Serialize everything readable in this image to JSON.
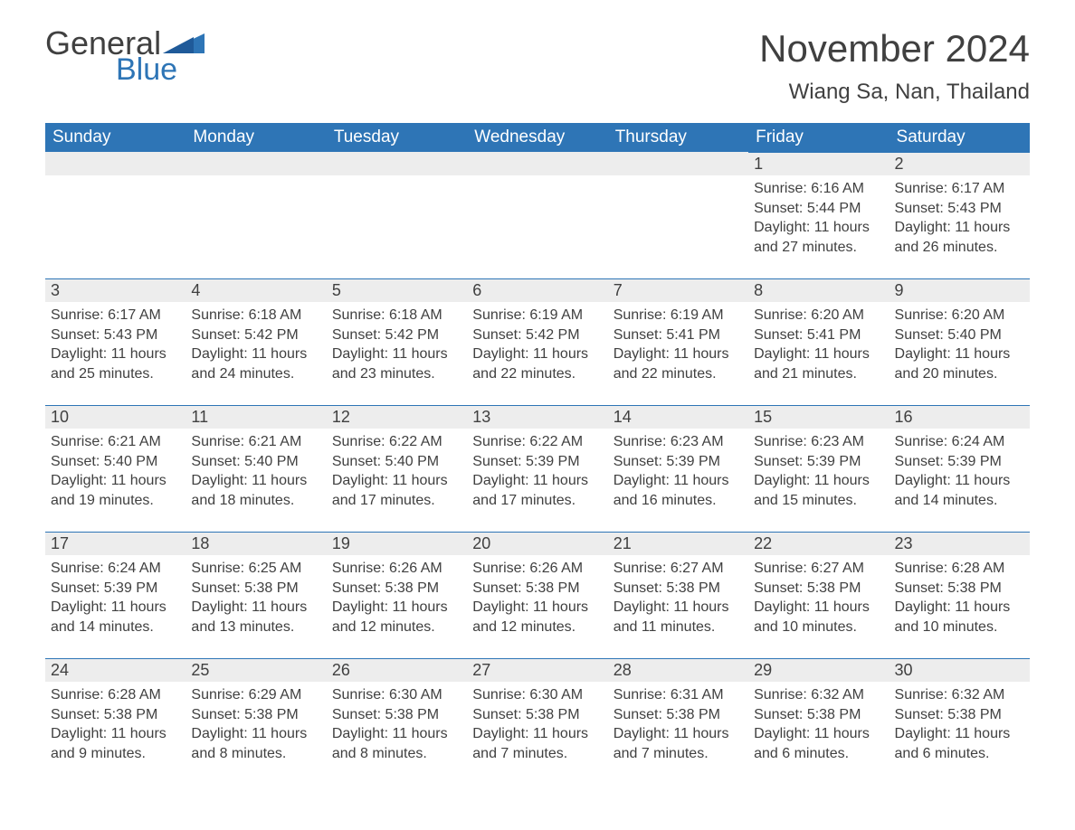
{
  "logo": {
    "text1": "General",
    "text2": "Blue",
    "color_general": "#404040",
    "color_blue": "#2e75b6"
  },
  "title": "November 2024",
  "location": "Wiang Sa, Nan, Thailand",
  "colors": {
    "header_bg": "#2e75b6",
    "header_text": "#ffffff",
    "daynum_bg": "#ededed",
    "day_border_top": "#2e75b6",
    "body_text": "#404040",
    "page_bg": "#ffffff"
  },
  "fonts": {
    "title_size": 42,
    "location_size": 24,
    "weekday_size": 19,
    "daynum_size": 18,
    "body_size": 16
  },
  "weekdays": [
    "Sunday",
    "Monday",
    "Tuesday",
    "Wednesday",
    "Thursday",
    "Friday",
    "Saturday"
  ],
  "weeks": [
    [
      null,
      null,
      null,
      null,
      null,
      {
        "n": "1",
        "sunrise": "Sunrise: 6:16 AM",
        "sunset": "Sunset: 5:44 PM",
        "daylight": "Daylight: 11 hours and 27 minutes."
      },
      {
        "n": "2",
        "sunrise": "Sunrise: 6:17 AM",
        "sunset": "Sunset: 5:43 PM",
        "daylight": "Daylight: 11 hours and 26 minutes."
      }
    ],
    [
      {
        "n": "3",
        "sunrise": "Sunrise: 6:17 AM",
        "sunset": "Sunset: 5:43 PM",
        "daylight": "Daylight: 11 hours and 25 minutes."
      },
      {
        "n": "4",
        "sunrise": "Sunrise: 6:18 AM",
        "sunset": "Sunset: 5:42 PM",
        "daylight": "Daylight: 11 hours and 24 minutes."
      },
      {
        "n": "5",
        "sunrise": "Sunrise: 6:18 AM",
        "sunset": "Sunset: 5:42 PM",
        "daylight": "Daylight: 11 hours and 23 minutes."
      },
      {
        "n": "6",
        "sunrise": "Sunrise: 6:19 AM",
        "sunset": "Sunset: 5:42 PM",
        "daylight": "Daylight: 11 hours and 22 minutes."
      },
      {
        "n": "7",
        "sunrise": "Sunrise: 6:19 AM",
        "sunset": "Sunset: 5:41 PM",
        "daylight": "Daylight: 11 hours and 22 minutes."
      },
      {
        "n": "8",
        "sunrise": "Sunrise: 6:20 AM",
        "sunset": "Sunset: 5:41 PM",
        "daylight": "Daylight: 11 hours and 21 minutes."
      },
      {
        "n": "9",
        "sunrise": "Sunrise: 6:20 AM",
        "sunset": "Sunset: 5:40 PM",
        "daylight": "Daylight: 11 hours and 20 minutes."
      }
    ],
    [
      {
        "n": "10",
        "sunrise": "Sunrise: 6:21 AM",
        "sunset": "Sunset: 5:40 PM",
        "daylight": "Daylight: 11 hours and 19 minutes."
      },
      {
        "n": "11",
        "sunrise": "Sunrise: 6:21 AM",
        "sunset": "Sunset: 5:40 PM",
        "daylight": "Daylight: 11 hours and 18 minutes."
      },
      {
        "n": "12",
        "sunrise": "Sunrise: 6:22 AM",
        "sunset": "Sunset: 5:40 PM",
        "daylight": "Daylight: 11 hours and 17 minutes."
      },
      {
        "n": "13",
        "sunrise": "Sunrise: 6:22 AM",
        "sunset": "Sunset: 5:39 PM",
        "daylight": "Daylight: 11 hours and 17 minutes."
      },
      {
        "n": "14",
        "sunrise": "Sunrise: 6:23 AM",
        "sunset": "Sunset: 5:39 PM",
        "daylight": "Daylight: 11 hours and 16 minutes."
      },
      {
        "n": "15",
        "sunrise": "Sunrise: 6:23 AM",
        "sunset": "Sunset: 5:39 PM",
        "daylight": "Daylight: 11 hours and 15 minutes."
      },
      {
        "n": "16",
        "sunrise": "Sunrise: 6:24 AM",
        "sunset": "Sunset: 5:39 PM",
        "daylight": "Daylight: 11 hours and 14 minutes."
      }
    ],
    [
      {
        "n": "17",
        "sunrise": "Sunrise: 6:24 AM",
        "sunset": "Sunset: 5:39 PM",
        "daylight": "Daylight: 11 hours and 14 minutes."
      },
      {
        "n": "18",
        "sunrise": "Sunrise: 6:25 AM",
        "sunset": "Sunset: 5:38 PM",
        "daylight": "Daylight: 11 hours and 13 minutes."
      },
      {
        "n": "19",
        "sunrise": "Sunrise: 6:26 AM",
        "sunset": "Sunset: 5:38 PM",
        "daylight": "Daylight: 11 hours and 12 minutes."
      },
      {
        "n": "20",
        "sunrise": "Sunrise: 6:26 AM",
        "sunset": "Sunset: 5:38 PM",
        "daylight": "Daylight: 11 hours and 12 minutes."
      },
      {
        "n": "21",
        "sunrise": "Sunrise: 6:27 AM",
        "sunset": "Sunset: 5:38 PM",
        "daylight": "Daylight: 11 hours and 11 minutes."
      },
      {
        "n": "22",
        "sunrise": "Sunrise: 6:27 AM",
        "sunset": "Sunset: 5:38 PM",
        "daylight": "Daylight: 11 hours and 10 minutes."
      },
      {
        "n": "23",
        "sunrise": "Sunrise: 6:28 AM",
        "sunset": "Sunset: 5:38 PM",
        "daylight": "Daylight: 11 hours and 10 minutes."
      }
    ],
    [
      {
        "n": "24",
        "sunrise": "Sunrise: 6:28 AM",
        "sunset": "Sunset: 5:38 PM",
        "daylight": "Daylight: 11 hours and 9 minutes."
      },
      {
        "n": "25",
        "sunrise": "Sunrise: 6:29 AM",
        "sunset": "Sunset: 5:38 PM",
        "daylight": "Daylight: 11 hours and 8 minutes."
      },
      {
        "n": "26",
        "sunrise": "Sunrise: 6:30 AM",
        "sunset": "Sunset: 5:38 PM",
        "daylight": "Daylight: 11 hours and 8 minutes."
      },
      {
        "n": "27",
        "sunrise": "Sunrise: 6:30 AM",
        "sunset": "Sunset: 5:38 PM",
        "daylight": "Daylight: 11 hours and 7 minutes."
      },
      {
        "n": "28",
        "sunrise": "Sunrise: 6:31 AM",
        "sunset": "Sunset: 5:38 PM",
        "daylight": "Daylight: 11 hours and 7 minutes."
      },
      {
        "n": "29",
        "sunrise": "Sunrise: 6:32 AM",
        "sunset": "Sunset: 5:38 PM",
        "daylight": "Daylight: 11 hours and 6 minutes."
      },
      {
        "n": "30",
        "sunrise": "Sunrise: 6:32 AM",
        "sunset": "Sunset: 5:38 PM",
        "daylight": "Daylight: 11 hours and 6 minutes."
      }
    ]
  ]
}
